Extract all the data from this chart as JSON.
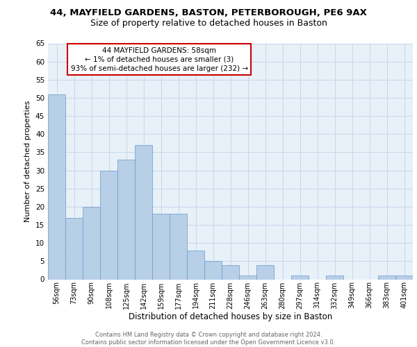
{
  "title_line1": "44, MAYFIELD GARDENS, BASTON, PETERBOROUGH, PE6 9AX",
  "title_line2": "Size of property relative to detached houses in Baston",
  "xlabel": "Distribution of detached houses by size in Baston",
  "ylabel": "Number of detached properties",
  "categories": [
    "56sqm",
    "73sqm",
    "90sqm",
    "108sqm",
    "125sqm",
    "142sqm",
    "159sqm",
    "177sqm",
    "194sqm",
    "211sqm",
    "228sqm",
    "246sqm",
    "263sqm",
    "280sqm",
    "297sqm",
    "314sqm",
    "332sqm",
    "349sqm",
    "366sqm",
    "383sqm",
    "401sqm"
  ],
  "values": [
    51,
    17,
    20,
    30,
    33,
    37,
    18,
    18,
    8,
    5,
    4,
    1,
    4,
    0,
    1,
    0,
    1,
    0,
    0,
    1,
    1
  ],
  "bar_color": "#b8cfe8",
  "bar_edge_color": "#6699cc",
  "annotation_box_text": "44 MAYFIELD GARDENS: 58sqm\n← 1% of detached houses are smaller (3)\n93% of semi-detached houses are larger (232) →",
  "annotation_box_color": "white",
  "annotation_box_edge_color": "#cc0000",
  "grid_color": "#c8d8ea",
  "background_color": "#e8f0f8",
  "footer_text": "Contains HM Land Registry data © Crown copyright and database right 2024.\nContains public sector information licensed under the Open Government Licence v3.0.",
  "ylim": [
    0,
    65
  ],
  "yticks": [
    0,
    5,
    10,
    15,
    20,
    25,
    30,
    35,
    40,
    45,
    50,
    55,
    60,
    65
  ],
  "title1_fontsize": 9.5,
  "title2_fontsize": 9,
  "ylabel_fontsize": 8,
  "xlabel_fontsize": 8.5,
  "tick_fontsize": 7,
  "footer_fontsize": 6,
  "ann_fontsize": 7.5
}
